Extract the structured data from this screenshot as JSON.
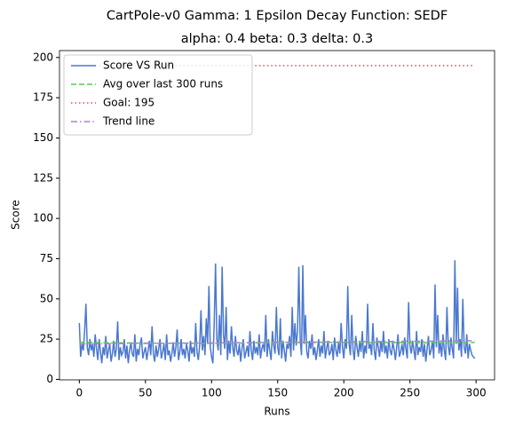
{
  "chart_data": {
    "type": "line",
    "title": "CartPole-v0 Gamma: 1 Epsilon Decay Function: SEDF",
    "subtitle": "alpha: 0.4  beta: 0.3  delta: 0.3",
    "x_label": "Runs",
    "y_label": "Score",
    "xlim": [
      -15,
      314
    ],
    "ylim": [
      -0.3,
      204.3
    ],
    "xticks": [
      0,
      50,
      100,
      150,
      200,
      250,
      300
    ],
    "yticks": [
      0,
      25,
      50,
      75,
      100,
      125,
      150,
      175,
      200
    ],
    "legend": "upper left",
    "x": [
      0,
      1,
      2,
      3,
      4,
      5,
      6,
      7,
      8,
      9,
      10,
      11,
      12,
      13,
      14,
      15,
      16,
      17,
      18,
      19,
      20,
      21,
      22,
      23,
      24,
      25,
      26,
      27,
      28,
      29,
      30,
      31,
      32,
      33,
      34,
      35,
      36,
      37,
      38,
      39,
      40,
      41,
      42,
      43,
      44,
      45,
      46,
      47,
      48,
      49,
      50,
      51,
      52,
      53,
      54,
      55,
      56,
      57,
      58,
      59,
      60,
      61,
      62,
      63,
      64,
      65,
      66,
      67,
      68,
      69,
      70,
      71,
      72,
      73,
      74,
      75,
      76,
      77,
      78,
      79,
      80,
      81,
      82,
      83,
      84,
      85,
      86,
      87,
      88,
      89,
      90,
      91,
      92,
      93,
      94,
      95,
      96,
      97,
      98,
      99,
      100,
      101,
      102,
      103,
      104,
      105,
      106,
      107,
      108,
      109,
      110,
      111,
      112,
      113,
      114,
      115,
      116,
      117,
      118,
      119,
      120,
      121,
      122,
      123,
      124,
      125,
      126,
      127,
      128,
      129,
      130,
      131,
      132,
      133,
      134,
      135,
      136,
      137,
      138,
      139,
      140,
      141,
      142,
      143,
      144,
      145,
      146,
      147,
      148,
      149,
      150,
      151,
      152,
      153,
      154,
      155,
      156,
      157,
      158,
      159,
      160,
      161,
      162,
      163,
      164,
      165,
      166,
      167,
      168,
      169,
      170,
      171,
      172,
      173,
      174,
      175,
      176,
      177,
      178,
      179,
      180,
      181,
      182,
      183,
      184,
      185,
      186,
      187,
      188,
      189,
      190,
      191,
      192,
      193,
      194,
      195,
      196,
      197,
      198,
      199,
      200,
      201,
      202,
      203,
      204,
      205,
      206,
      207,
      208,
      209,
      210,
      211,
      212,
      213,
      214,
      215,
      216,
      217,
      218,
      219,
      220,
      221,
      222,
      223,
      224,
      225,
      226,
      227,
      228,
      229,
      230,
      231,
      232,
      233,
      234,
      235,
      236,
      237,
      238,
      239,
      240,
      241,
      242,
      243,
      244,
      245,
      246,
      247,
      248,
      249,
      250,
      251,
      252,
      253,
      254,
      255,
      256,
      257,
      258,
      259,
      260,
      261,
      262,
      263,
      264,
      265,
      266,
      267,
      268,
      269,
      270,
      271,
      272,
      273,
      274,
      275,
      276,
      277,
      278,
      279,
      280,
      281,
      282,
      283,
      284,
      285,
      286,
      287,
      288,
      289,
      290,
      291,
      292,
      293,
      294,
      295,
      296,
      297,
      298,
      299
    ],
    "series": [
      {
        "name": "Score VS Run",
        "color": "#4a78cf",
        "dash": "solid",
        "values": [
          35,
          14,
          22,
          18,
          30,
          47,
          20,
          15,
          25,
          18,
          22,
          14,
          28,
          19,
          12,
          25,
          17,
          10,
          20,
          15,
          27,
          13,
          18,
          22,
          11,
          16,
          24,
          14,
          19,
          36,
          12,
          20,
          15,
          17,
          25,
          13,
          21,
          10,
          18,
          23,
          16,
          14,
          28,
          11,
          19,
          15,
          22,
          26,
          13,
          17,
          20,
          12,
          18,
          24,
          15,
          33,
          16,
          11,
          21,
          14,
          19,
          25,
          13,
          17,
          22,
          12,
          28,
          15,
          18,
          11,
          16,
          23,
          14,
          20,
          31,
          12,
          17,
          25,
          15,
          19,
          13,
          22,
          18,
          11,
          24,
          16,
          20,
          14,
          35,
          17,
          12,
          21,
          43,
          18,
          27,
          15,
          38,
          22,
          58,
          20,
          14,
          10,
          35,
          72,
          25,
          18,
          40,
          15,
          70,
          28,
          19,
          45,
          12,
          24,
          16,
          33,
          20,
          14,
          27,
          18,
          15,
          22,
          11,
          19,
          25,
          13,
          17,
          21,
          14,
          30,
          18,
          12,
          24,
          16,
          20,
          15,
          28,
          13,
          19,
          22,
          17,
          40,
          14,
          25,
          18,
          12,
          30,
          21,
          16,
          45,
          20,
          15,
          38,
          13,
          24,
          18,
          11,
          22,
          19,
          27,
          14,
          45,
          18,
          35,
          21,
          30,
          70,
          25,
          15,
          71,
          22,
          40,
          17,
          13,
          24,
          19,
          28,
          15,
          20,
          12,
          18,
          25,
          14,
          21,
          16,
          30,
          13,
          19,
          24,
          15,
          17,
          22,
          12,
          26,
          18,
          14,
          23,
          16,
          35,
          20,
          13,
          25,
          19,
          58,
          22,
          15,
          40,
          18,
          12,
          27,
          20,
          14,
          24,
          17,
          30,
          13,
          21,
          16,
          47,
          19,
          22,
          15,
          35,
          18,
          12,
          26,
          20,
          14,
          24,
          17,
          30,
          16,
          21,
          13,
          25,
          18,
          15,
          23,
          19,
          12,
          20,
          28,
          14,
          17,
          22,
          15,
          26,
          19,
          13,
          48,
          21,
          16,
          24,
          18,
          12,
          30,
          15,
          20,
          17,
          25,
          14,
          22,
          11,
          19,
          27,
          15,
          18,
          24,
          13,
          59,
          20,
          40,
          16,
          23,
          14,
          28,
          18,
          12,
          45,
          21,
          15,
          26,
          19,
          13,
          74,
          22,
          57,
          18,
          25,
          14,
          50,
          20,
          16,
          28,
          13,
          22,
          18,
          15,
          14,
          13
        ]
      },
      {
        "name": "Avg over last 300 runs",
        "color": "#5ac75a",
        "dash": "dashed",
        "x": [
          0,
          50,
          100,
          150,
          200,
          250,
          299
        ],
        "values": [
          23,
          22.5,
          22.4,
          22.8,
          23,
          22.8,
          22.9
        ]
      },
      {
        "name": "Goal: 195",
        "color": "#e05050",
        "dash": "dotted",
        "x": [
          0,
          299
        ],
        "values": [
          195,
          195
        ]
      },
      {
        "name": "Trend line",
        "color": "#b07cd8",
        "dash": "dashdot",
        "x": [
          0,
          299
        ],
        "values": [
          22,
          24
        ]
      }
    ]
  }
}
